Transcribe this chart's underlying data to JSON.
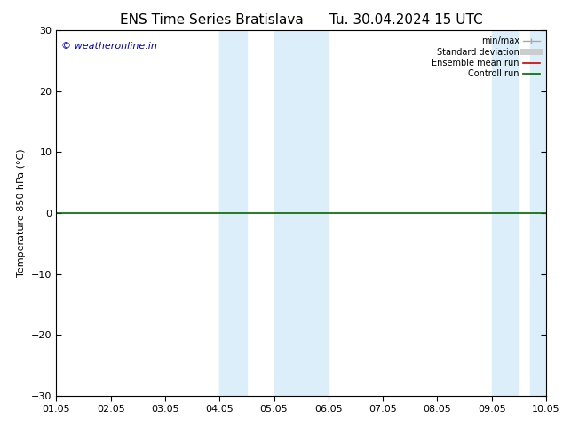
{
  "title_left": "ENS Time Series Bratislava",
  "title_right": "Tu. 30.04.2024 15 UTC",
  "ylabel": "Temperature 850 hPa (°C)",
  "xlabel": "",
  "ylim": [
    -30,
    30
  ],
  "yticks": [
    -30,
    -20,
    -10,
    0,
    10,
    20,
    30
  ],
  "xlim": [
    0,
    9
  ],
  "xtick_labels": [
    "01.05",
    "02.05",
    "03.05",
    "04.05",
    "05.05",
    "06.05",
    "07.05",
    "08.05",
    "09.05",
    "10.05"
  ],
  "xtick_positions": [
    0,
    1,
    2,
    3,
    4,
    5,
    6,
    7,
    8,
    9
  ],
  "shaded_bands": [
    {
      "xmin": 3.0,
      "xmax": 3.5
    },
    {
      "xmin": 4.0,
      "xmax": 5.0
    },
    {
      "xmin": 8.0,
      "xmax": 8.5
    },
    {
      "xmin": 8.7,
      "xmax": 9.0
    }
  ],
  "shade_color": "#dceef9",
  "watermark": "© weatheronline.in",
  "watermark_color": "#0000cc",
  "watermark_fontsize": 8,
  "legend_items": [
    {
      "label": "min/max",
      "color": "#aaaaaa",
      "lw": 1.0
    },
    {
      "label": "Standard deviation",
      "color": "#cccccc",
      "lw": 5
    },
    {
      "label": "Ensemble mean run",
      "color": "#cc0000",
      "lw": 1.2
    },
    {
      "label": "Controll run",
      "color": "#006600",
      "lw": 1.2
    }
  ],
  "bg_color": "#ffffff",
  "title_fontsize": 11,
  "axis_fontsize": 8,
  "tick_fontsize": 8,
  "zero_line_color": "#006600",
  "zero_line_lw": 1.2
}
